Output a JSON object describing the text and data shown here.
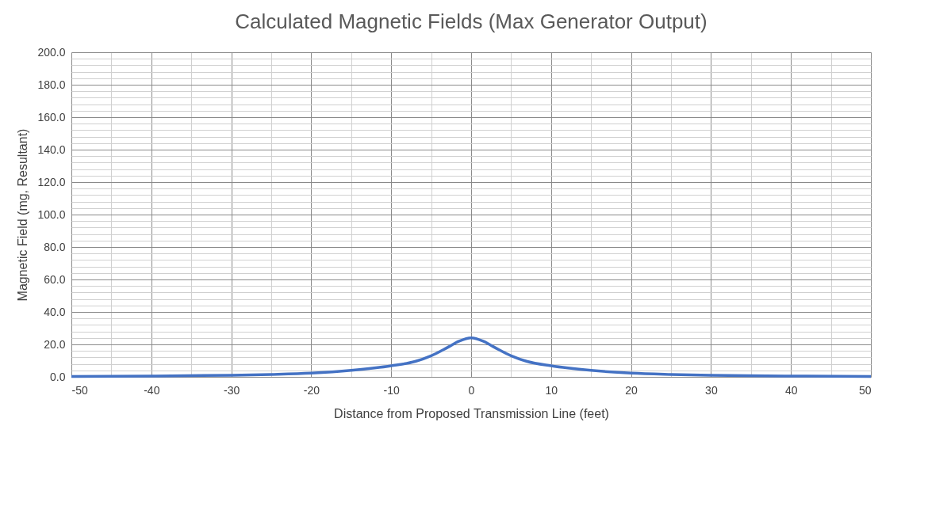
{
  "chart_data": {
    "type": "line",
    "title": "Calculated Magnetic Fields (Max Generator Output)",
    "xlabel": "Distance from Proposed Transmission Line (feet)",
    "ylabel": "Magnetic Field (mg, Resultant)",
    "x": [
      -50,
      -40,
      -30,
      -25,
      -20,
      -15,
      -10,
      -7,
      -5,
      -3,
      -1.5,
      0,
      1.5,
      3,
      5,
      7,
      10,
      15,
      20,
      25,
      30,
      40,
      50
    ],
    "series": [
      {
        "color": "#4472c4",
        "values": [
          0.3,
          0.5,
          1.0,
          1.5,
          2.3,
          4.0,
          6.8,
          9.5,
          13,
          18,
          22,
          24,
          22,
          18,
          13,
          9.5,
          6.8,
          4.0,
          2.3,
          1.5,
          1.0,
          0.5,
          0.3
        ]
      }
    ],
    "xlim": [
      -50,
      50
    ],
    "ylim": [
      0,
      200
    ],
    "xticks": [
      -50,
      {
        "value": -45,
        "label": null
      },
      -40,
      {
        "value": -35,
        "label": null
      },
      -30,
      {
        "value": -25,
        "label": null
      },
      -20,
      {
        "value": -15,
        "label": null
      },
      -10,
      {
        "value": -5,
        "label": null
      },
      0,
      {
        "value": 5,
        "label": null
      },
      10,
      {
        "value": 15,
        "label": null
      },
      20,
      {
        "value": 25,
        "label": null
      },
      30,
      {
        "value": 35,
        "label": null
      },
      40,
      {
        "value": 45,
        "label": null
      },
      50
    ],
    "yticks": [
      {
        "value": 0,
        "label": "0.0"
      },
      {
        "value": 4,
        "label": null
      },
      {
        "value": 8,
        "label": null
      },
      {
        "value": 12,
        "label": null
      },
      {
        "value": 16,
        "label": null
      },
      {
        "value": 20,
        "label": "20.0"
      },
      {
        "value": 24,
        "label": null
      },
      {
        "value": 28,
        "label": null
      },
      {
        "value": 32,
        "label": null
      },
      {
        "value": 36,
        "label": null
      },
      {
        "value": 40,
        "label": "40.0"
      },
      {
        "value": 44,
        "label": null
      },
      {
        "value": 48,
        "label": null
      },
      {
        "value": 52,
        "label": null
      },
      {
        "value": 56,
        "label": null
      },
      {
        "value": 60,
        "label": "60.0"
      },
      {
        "value": 64,
        "label": null
      },
      {
        "value": 68,
        "label": null
      },
      {
        "value": 72,
        "label": null
      },
      {
        "value": 76,
        "label": null
      },
      {
        "value": 80,
        "label": "80.0"
      },
      {
        "value": 84,
        "label": null
      },
      {
        "value": 88,
        "label": null
      },
      {
        "value": 92,
        "label": null
      },
      {
        "value": 96,
        "label": null
      },
      {
        "value": 100,
        "label": "100.0"
      },
      {
        "value": 104,
        "label": null
      },
      {
        "value": 108,
        "label": null
      },
      {
        "value": 112,
        "label": null
      },
      {
        "value": 116,
        "label": null
      },
      {
        "value": 120,
        "label": "120.0"
      },
      {
        "value": 124,
        "label": null
      },
      {
        "value": 128,
        "label": null
      },
      {
        "value": 132,
        "label": null
      },
      {
        "value": 136,
        "label": null
      },
      {
        "value": 140,
        "label": "140.0"
      },
      {
        "value": 144,
        "label": null
      },
      {
        "value": 148,
        "label": null
      },
      {
        "value": 152,
        "label": null
      },
      {
        "value": 156,
        "label": null
      },
      {
        "value": 160,
        "label": "160.0"
      },
      {
        "value": 164,
        "label": null
      },
      {
        "value": 168,
        "label": null
      },
      {
        "value": 172,
        "label": null
      },
      {
        "value": 176,
        "label": null
      },
      {
        "value": 180,
        "label": "180.0"
      },
      {
        "value": 184,
        "label": null
      },
      {
        "value": 188,
        "label": null
      },
      {
        "value": 192,
        "label": null
      },
      {
        "value": 196,
        "label": null
      },
      {
        "value": 200,
        "label": "200.0"
      }
    ],
    "grid": true,
    "marker": "none",
    "line_style": "solid"
  }
}
